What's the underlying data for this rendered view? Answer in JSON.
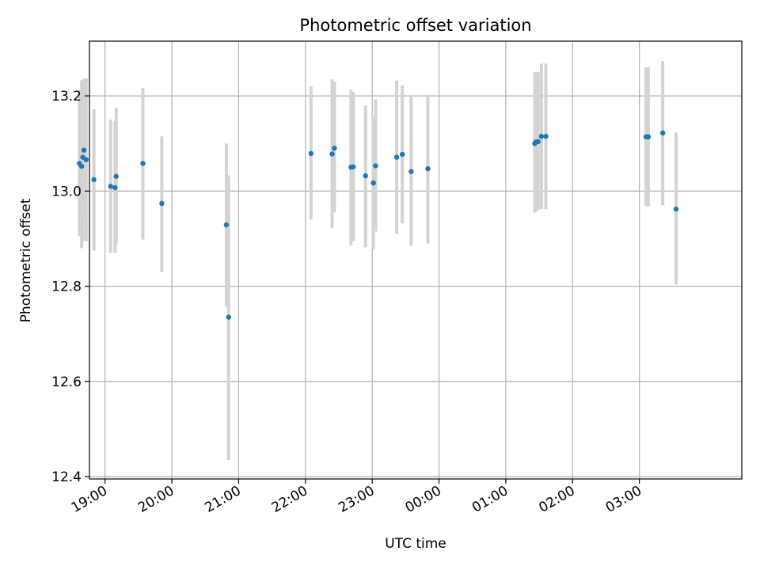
{
  "chart_data": {
    "type": "scatter",
    "title": "Photometric offset variation",
    "xlabel": "UTC time",
    "ylabel": "Photometric offset",
    "grid": true,
    "ylim": [
      12.395,
      13.315
    ],
    "xlim": [
      "18:46",
      "04:32"
    ],
    "x_ticks": [
      "19:00",
      "20:00",
      "21:00",
      "22:00",
      "23:00",
      "00:00",
      "01:00",
      "02:00",
      "03:00"
    ],
    "y_ticks": [
      "12.4",
      "12.6",
      "12.8",
      "13.0",
      "13.2"
    ],
    "colors": {
      "points": "#1f77b4",
      "errorbars": "#d3d3d3",
      "grid": "#b0b0b0"
    },
    "points": [
      {
        "time": "18:37",
        "value": 13.058,
        "err_low": 12.905,
        "err_high": 13.212
      },
      {
        "time": "18:39",
        "value": 13.052,
        "err_low": 12.88,
        "err_high": 13.232
      },
      {
        "time": "18:40",
        "value": 13.071,
        "err_low": 12.895,
        "err_high": 13.234
      },
      {
        "time": "18:41",
        "value": 13.086,
        "err_low": 12.94,
        "err_high": 13.236
      },
      {
        "time": "18:43",
        "value": 13.066,
        "err_low": 12.895,
        "err_high": 13.237
      },
      {
        "time": "18:50",
        "value": 13.024,
        "err_low": 12.875,
        "err_high": 13.172
      },
      {
        "time": "19:05",
        "value": 13.01,
        "err_low": 12.87,
        "err_high": 13.15
      },
      {
        "time": "19:09",
        "value": 13.007,
        "err_low": 12.87,
        "err_high": 13.147
      },
      {
        "time": "19:10",
        "value": 13.031,
        "err_low": 12.888,
        "err_high": 13.175
      },
      {
        "time": "19:34",
        "value": 13.058,
        "err_low": 12.898,
        "err_high": 13.217
      },
      {
        "time": "19:51",
        "value": 12.974,
        "err_low": 12.83,
        "err_high": 13.115
      },
      {
        "time": "20:49",
        "value": 12.929,
        "err_low": 12.757,
        "err_high": 13.1
      },
      {
        "time": "20:51",
        "value": 12.735,
        "err_low": 12.435,
        "err_high": 13.033
      },
      {
        "time": "22:05",
        "value": 13.079,
        "err_low": 12.94,
        "err_high": 13.22
      },
      {
        "time": "22:24",
        "value": 13.078,
        "err_low": 12.922,
        "err_high": 13.235
      },
      {
        "time": "22:26",
        "value": 13.09,
        "err_low": 12.955,
        "err_high": 13.23
      },
      {
        "time": "22:41",
        "value": 13.05,
        "err_low": 12.886,
        "err_high": 13.213
      },
      {
        "time": "22:43",
        "value": 13.051,
        "err_low": 12.895,
        "err_high": 13.208
      },
      {
        "time": "22:54",
        "value": 13.032,
        "err_low": 12.882,
        "err_high": 13.18
      },
      {
        "time": "23:01",
        "value": 13.017,
        "err_low": 12.878,
        "err_high": 13.157
      },
      {
        "time": "23:03",
        "value": 13.053,
        "err_low": 12.915,
        "err_high": 13.193
      },
      {
        "time": "23:22",
        "value": 13.071,
        "err_low": 12.91,
        "err_high": 13.232
      },
      {
        "time": "23:27",
        "value": 13.077,
        "err_low": 12.932,
        "err_high": 13.222
      },
      {
        "time": "23:35",
        "value": 13.041,
        "err_low": 12.885,
        "err_high": 13.2
      },
      {
        "time": "23:50",
        "value": 13.047,
        "err_low": 12.89,
        "err_high": 13.202
      },
      {
        "time": "01:26",
        "value": 13.1,
        "err_low": 12.955,
        "err_high": 13.25
      },
      {
        "time": "01:27",
        "value": 13.103,
        "err_low": 12.958,
        "err_high": 13.25
      },
      {
        "time": "01:29",
        "value": 13.104,
        "err_low": 12.96,
        "err_high": 13.25
      },
      {
        "time": "01:32",
        "value": 13.115,
        "err_low": 12.962,
        "err_high": 13.268
      },
      {
        "time": "01:36",
        "value": 13.115,
        "err_low": 12.962,
        "err_high": 13.268
      },
      {
        "time": "03:06",
        "value": 13.114,
        "err_low": 12.968,
        "err_high": 13.26
      },
      {
        "time": "03:08",
        "value": 13.114,
        "err_low": 12.968,
        "err_high": 13.26
      },
      {
        "time": "03:21",
        "value": 13.122,
        "err_low": 12.97,
        "err_high": 13.273
      },
      {
        "time": "03:33",
        "value": 12.962,
        "err_low": 12.803,
        "err_high": 13.123
      }
    ]
  }
}
